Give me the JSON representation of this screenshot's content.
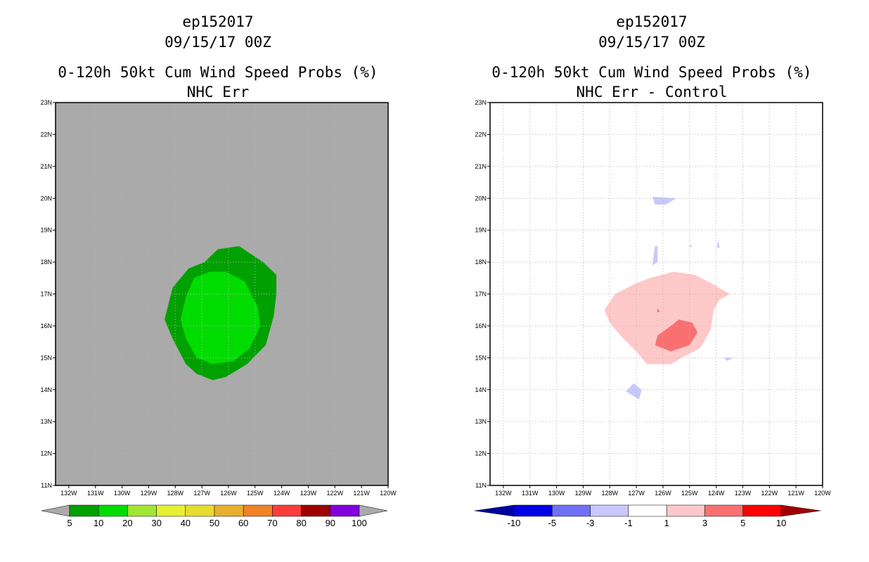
{
  "panels": [
    {
      "storm_id": "ep152017",
      "datetime": "09/15/17 00Z",
      "title": "0-120h 50kt Cum Wind Speed Probs (%)",
      "subtitle": "NHC Err",
      "chart_data": {
        "type": "filled-contour map",
        "x_ticks": [
          "132W",
          "131W",
          "130W",
          "129W",
          "128W",
          "127W",
          "126W",
          "125W",
          "124W",
          "123W",
          "122W",
          "121W",
          "120W"
        ],
        "y_ticks": [
          "11N",
          "12N",
          "13N",
          "14N",
          "15N",
          "16N",
          "17N",
          "18N",
          "19N",
          "20N",
          "21N",
          "22N",
          "23N"
        ],
        "lon_range": [
          -132.5,
          -120
        ],
        "lat_range": [
          11,
          23
        ],
        "background_color": "#aaaaaa",
        "grid": true,
        "contours": [
          {
            "level": "5-10",
            "color": "#00a000",
            "lonlat": [
              [
                -126.4,
                18.4
              ],
              [
                -125.6,
                18.5
              ],
              [
                -124.7,
                18.0
              ],
              [
                -124.2,
                17.6
              ],
              [
                -124.2,
                17.0
              ],
              [
                -124.3,
                16.3
              ],
              [
                -124.6,
                15.4
              ],
              [
                -125.3,
                14.8
              ],
              [
                -126.1,
                14.4
              ],
              [
                -126.6,
                14.3
              ],
              [
                -127.2,
                14.5
              ],
              [
                -127.6,
                14.8
              ],
              [
                -128.1,
                15.6
              ],
              [
                -128.4,
                16.2
              ],
              [
                -128.1,
                17.2
              ],
              [
                -127.5,
                17.8
              ],
              [
                -126.9,
                18.0
              ]
            ]
          },
          {
            "level": "10-20",
            "color": "#00dc00",
            "lonlat": [
              [
                -127.3,
                17.5
              ],
              [
                -126.7,
                17.7
              ],
              [
                -126.1,
                17.7
              ],
              [
                -125.4,
                17.4
              ],
              [
                -124.9,
                16.6
              ],
              [
                -124.8,
                16.0
              ],
              [
                -125.2,
                15.3
              ],
              [
                -125.8,
                14.9
              ],
              [
                -126.6,
                14.8
              ],
              [
                -127.2,
                15.0
              ],
              [
                -127.6,
                15.6
              ],
              [
                -127.8,
                16.2
              ],
              [
                -127.6,
                16.9
              ]
            ]
          }
        ]
      },
      "colorbar": {
        "labels": [
          "5",
          "10",
          "20",
          "30",
          "40",
          "50",
          "60",
          "70",
          "80",
          "90",
          "100"
        ],
        "colors": [
          "#00a000",
          "#00dc00",
          "#a0e632",
          "#e6f032",
          "#e6dc32",
          "#e6af2d",
          "#f08228",
          "#fa3c3c",
          "#a00000",
          "#8200dc"
        ],
        "end_color": "#aaaaaa"
      }
    },
    {
      "storm_id": "ep152017",
      "datetime": "09/15/17 00Z",
      "title": "0-120h 50kt Cum Wind Speed Probs (%)",
      "subtitle": "NHC Err - Control",
      "chart_data": {
        "type": "filled-contour map",
        "x_ticks": [
          "132W",
          "131W",
          "130W",
          "129W",
          "128W",
          "127W",
          "126W",
          "125W",
          "124W",
          "123W",
          "122W",
          "121W",
          "120W"
        ],
        "y_ticks": [
          "11N",
          "12N",
          "13N",
          "14N",
          "15N",
          "16N",
          "17N",
          "18N",
          "19N",
          "20N",
          "21N",
          "22N",
          "23N"
        ],
        "lon_range": [
          -132.5,
          -120
        ],
        "lat_range": [
          11,
          23
        ],
        "background_color": "#ffffff",
        "grid": true,
        "contours": [
          {
            "level": "1-3",
            "color": "#ffc8c8",
            "lonlat": [
              [
                -126.5,
                17.5
              ],
              [
                -125.6,
                17.7
              ],
              [
                -124.8,
                17.6
              ],
              [
                -124.1,
                17.3
              ],
              [
                -123.5,
                17.0
              ],
              [
                -123.9,
                16.8
              ],
              [
                -124.1,
                16.5
              ],
              [
                -124.2,
                15.9
              ],
              [
                -124.6,
                15.3
              ],
              [
                -125.3,
                15.0
              ],
              [
                -125.7,
                14.8
              ],
              [
                -126.6,
                14.8
              ],
              [
                -127.0,
                15.2
              ],
              [
                -127.6,
                15.7
              ],
              [
                -128.0,
                16.1
              ],
              [
                -128.2,
                16.5
              ],
              [
                -127.8,
                17.0
              ],
              [
                -127.1,
                17.3
              ]
            ]
          },
          {
            "level": "3-5",
            "color": "#fa7070",
            "lonlat": [
              [
                -125.4,
                16.2
              ],
              [
                -124.9,
                16.1
              ],
              [
                -124.7,
                15.8
              ],
              [
                -125.0,
                15.4
              ],
              [
                -125.7,
                15.2
              ],
              [
                -126.3,
                15.4
              ],
              [
                -126.2,
                15.7
              ],
              [
                -125.7,
                16.0
              ]
            ]
          },
          {
            "level": "3-5",
            "color": "#fa7070",
            "lonlat": [
              [
                -126.2,
                16.55
              ],
              [
                -126.12,
                16.45
              ],
              [
                -126.22,
                16.42
              ]
            ]
          },
          {
            "level": "1-3",
            "color": "#ffc8c8",
            "lonlat": [
              [
                -125.0,
                18.55
              ],
              [
                -124.88,
                18.5
              ],
              [
                -125.0,
                18.45
              ]
            ]
          },
          {
            "level": "-3--1",
            "color": "#c8c8ff",
            "lonlat": [
              [
                -126.4,
                20.05
              ],
              [
                -125.5,
                20.0
              ],
              [
                -125.9,
                19.8
              ],
              [
                -126.3,
                19.8
              ]
            ]
          },
          {
            "level": "-3--1",
            "color": "#c8c8ff",
            "lonlat": [
              [
                -126.3,
                18.5
              ],
              [
                -126.2,
                18.5
              ],
              [
                -126.2,
                18.0
              ],
              [
                -126.4,
                17.9
              ]
            ]
          },
          {
            "level": "-3--1",
            "color": "#c8c8ff",
            "lonlat": [
              [
                -123.93,
                18.7
              ],
              [
                -123.87,
                18.45
              ],
              [
                -123.97,
                18.45
              ]
            ]
          },
          {
            "level": "-3--1",
            "color": "#c8c8ff",
            "lonlat": [
              [
                -123.7,
                15.0
              ],
              [
                -123.35,
                15.0
              ],
              [
                -123.6,
                14.9
              ]
            ]
          },
          {
            "level": "-3--1",
            "color": "#c8c8ff",
            "lonlat": [
              [
                -127.1,
                14.2
              ],
              [
                -126.8,
                14.0
              ],
              [
                -126.9,
                13.7
              ],
              [
                -127.4,
                13.95
              ]
            ]
          }
        ]
      },
      "colorbar": {
        "labels": [
          "-10",
          "-5",
          "-3",
          "-1",
          "1",
          "3",
          "5",
          "10"
        ],
        "colors": [
          "#0000e6",
          "#7070f5",
          "#c8c8ff",
          "#ffffff",
          "#ffc8c8",
          "#fa7070",
          "#ff0000"
        ],
        "low_end_color": "#0000a0",
        "high_end_color": "#a00000"
      }
    }
  ]
}
